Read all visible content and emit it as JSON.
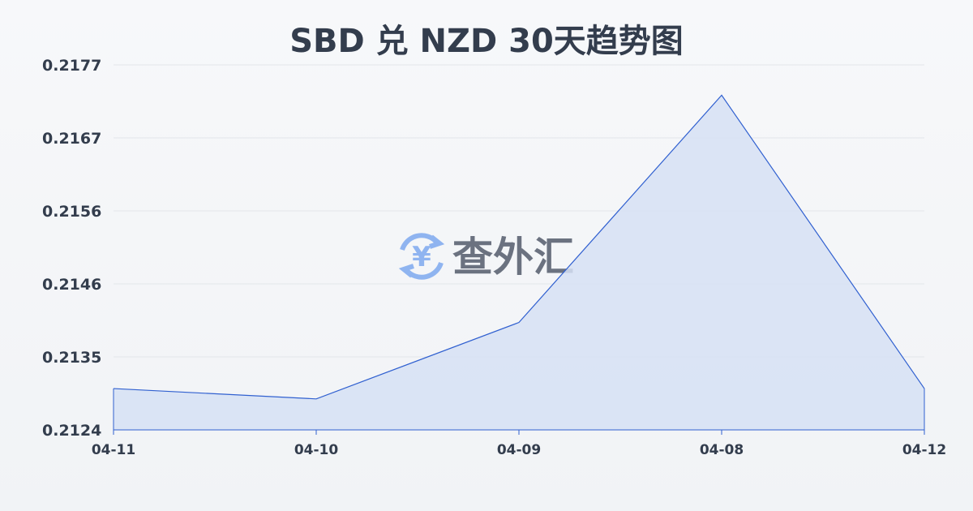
{
  "chart_data": {
    "type": "area",
    "title": "SBD 兑 NZD 30天趋势图",
    "xlabel": "",
    "ylabel": "",
    "categories": [
      "04-11",
      "04-10",
      "04-09",
      "04-08",
      "04-12"
    ],
    "values": [
      0.213,
      0.21285,
      0.21396,
      0.21726,
      0.213
    ],
    "yticks": [
      "0.2124",
      "0.2135",
      "0.2146",
      "0.2156",
      "0.2167",
      "0.2177"
    ],
    "ylim": [
      0.2124,
      0.2177
    ],
    "grid": true,
    "colors": {
      "line": "#3060d0",
      "fill": "#d6e0f5",
      "grid": "#e3e6ea",
      "text": "#333d4d"
    }
  },
  "watermark": {
    "text": "查外汇",
    "icon": "yen-exchange-icon",
    "icon_color": "#8fb4f0",
    "text_color": "#6b7280"
  }
}
